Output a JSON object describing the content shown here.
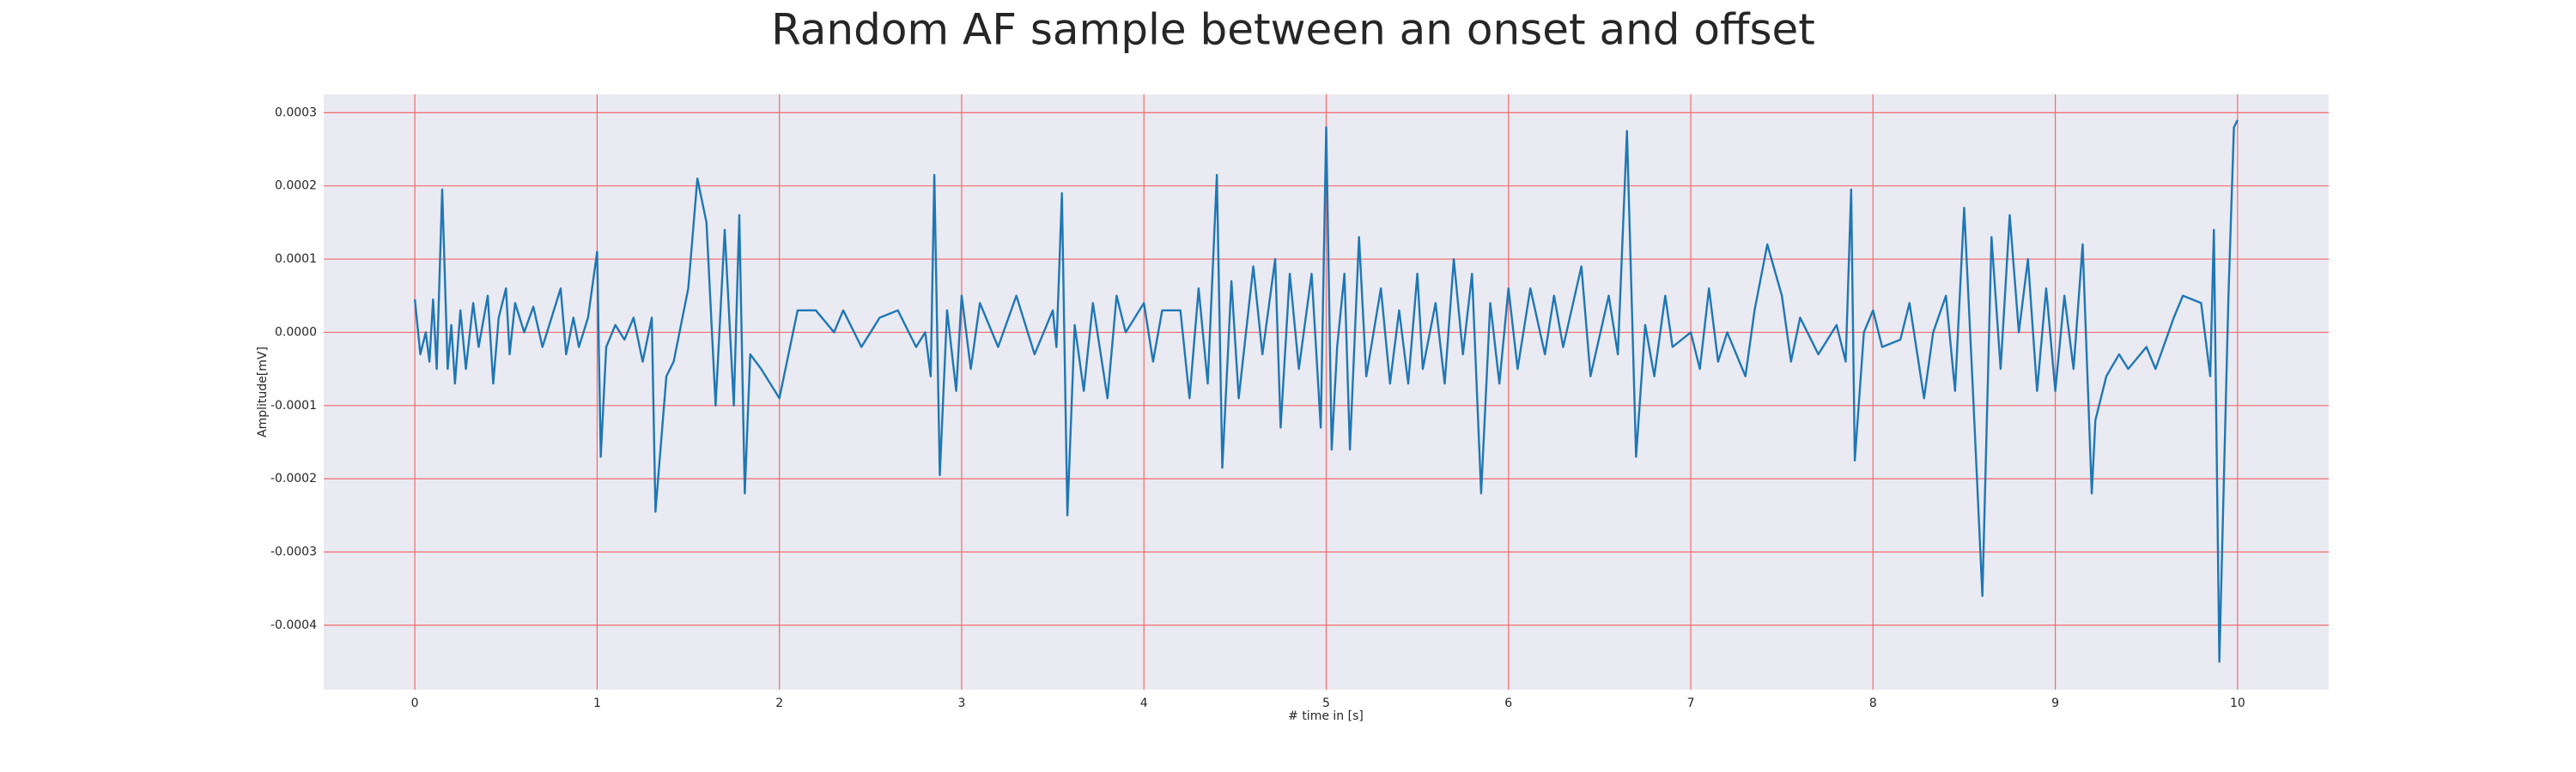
{
  "chart_data": {
    "type": "line",
    "title": "Random AF sample between an onset and offset",
    "xlabel": "# time in [s]",
    "ylabel": "Amplitude[mV]",
    "xlim": [
      -0.5,
      10.5
    ],
    "ylim": [
      -0.000488,
      0.000325
    ],
    "xticks": [
      0,
      1,
      2,
      3,
      4,
      5,
      6,
      7,
      8,
      9,
      10
    ],
    "yticks": [
      -0.0004,
      -0.0003,
      -0.0002,
      -0.0001,
      {
        "value": 0,
        "label": "0.0000"
      },
      0.0001,
      0.0002,
      0.0003
    ],
    "grid": true,
    "grid_color": "#f26b6b",
    "background": "#eaeaf2",
    "series": [
      {
        "color": "#1f77b4",
        "x": [
          0,
          0.03,
          0.06,
          0.08,
          0.1,
          0.12,
          0.15,
          0.18,
          0.2,
          0.22,
          0.25,
          0.28,
          0.32,
          0.35,
          0.4,
          0.43,
          0.46,
          0.5,
          0.52,
          0.55,
          0.6,
          0.65,
          0.7,
          0.75,
          0.8,
          0.83,
          0.87,
          0.9,
          0.95,
          1.0,
          1.02,
          1.05,
          1.1,
          1.15,
          1.2,
          1.25,
          1.3,
          1.32,
          1.38,
          1.42,
          1.5,
          1.55,
          1.6,
          1.65,
          1.7,
          1.75,
          1.78,
          1.81,
          1.84,
          1.9,
          2.0,
          2.05,
          2.1,
          2.2,
          2.3,
          2.35,
          2.45,
          2.55,
          2.65,
          2.75,
          2.8,
          2.83,
          2.85,
          2.88,
          2.92,
          2.97,
          3.0,
          3.05,
          3.1,
          3.2,
          3.3,
          3.4,
          3.5,
          3.52,
          3.55,
          3.58,
          3.62,
          3.67,
          3.72,
          3.8,
          3.85,
          3.9,
          4.0,
          4.05,
          4.1,
          4.2,
          4.25,
          4.3,
          4.35,
          4.4,
          4.43,
          4.48,
          4.52,
          4.6,
          4.65,
          4.72,
          4.75,
          4.8,
          4.85,
          4.92,
          4.97,
          5.0,
          5.03,
          5.06,
          5.1,
          5.13,
          5.18,
          5.22,
          5.3,
          5.35,
          5.4,
          5.45,
          5.5,
          5.53,
          5.6,
          5.65,
          5.7,
          5.75,
          5.8,
          5.85,
          5.9,
          5.95,
          6.0,
          6.05,
          6.12,
          6.2,
          6.25,
          6.3,
          6.4,
          6.45,
          6.55,
          6.6,
          6.65,
          6.7,
          6.75,
          6.8,
          6.86,
          6.9,
          7.0,
          7.05,
          7.1,
          7.15,
          7.2,
          7.3,
          7.35,
          7.42,
          7.5,
          7.55,
          7.6,
          7.7,
          7.8,
          7.85,
          7.88,
          7.9,
          7.95,
          8.0,
          8.05,
          8.15,
          8.2,
          8.28,
          8.33,
          8.4,
          8.45,
          8.5,
          8.55,
          8.6,
          8.65,
          8.7,
          8.75,
          8.8,
          8.85,
          8.9,
          8.95,
          9.0,
          9.05,
          9.1,
          9.15,
          9.2,
          9.22,
          9.28,
          9.35,
          9.4,
          9.5,
          9.55,
          9.65,
          9.7,
          9.8,
          9.85,
          9.87,
          9.9,
          9.95,
          9.98,
          10.0
        ],
        "values": [
          4.5e-05,
          -3e-05,
          0,
          -4e-05,
          4.5e-05,
          -5e-05,
          0.000195,
          -5e-05,
          1e-05,
          -7e-05,
          3e-05,
          -5e-05,
          4e-05,
          -2e-05,
          5e-05,
          -7e-05,
          2e-05,
          6e-05,
          -3e-05,
          4e-05,
          0,
          3.5e-05,
          -2e-05,
          2e-05,
          6e-05,
          -3e-05,
          2e-05,
          -2e-05,
          2e-05,
          0.00011,
          -0.00017,
          -2e-05,
          1e-05,
          -1e-05,
          2e-05,
          -4e-05,
          2e-05,
          -0.000245,
          -6e-05,
          -4e-05,
          6e-05,
          0.00021,
          0.00015,
          -0.0001,
          0.00014,
          -0.0001,
          0.00016,
          -0.00022,
          -3e-05,
          -5e-05,
          -9e-05,
          -3e-05,
          3e-05,
          3e-05,
          0,
          3e-05,
          -2e-05,
          2e-05,
          3e-05,
          -2e-05,
          0,
          -6e-05,
          0.000215,
          -0.000195,
          3e-05,
          -8e-05,
          5e-05,
          -5e-05,
          4e-05,
          -2e-05,
          5e-05,
          -3e-05,
          3e-05,
          -2e-05,
          0.00019,
          -0.00025,
          1e-05,
          -8e-05,
          4e-05,
          -9e-05,
          5e-05,
          0,
          4e-05,
          -4e-05,
          3e-05,
          3e-05,
          -9e-05,
          6e-05,
          -7e-05,
          0.000215,
          -0.000185,
          7e-05,
          -9e-05,
          9e-05,
          -3e-05,
          0.0001,
          -0.00013,
          8e-05,
          -5e-05,
          8e-05,
          -0.00013,
          0.00028,
          -0.00016,
          -2e-05,
          8e-05,
          -0.00016,
          0.00013,
          -6e-05,
          6e-05,
          -7e-05,
          3e-05,
          -7e-05,
          8e-05,
          -5e-05,
          4e-05,
          -7e-05,
          0.0001,
          -3e-05,
          8e-05,
          -0.00022,
          4e-05,
          -7e-05,
          6e-05,
          -5e-05,
          6e-05,
          -3e-05,
          5e-05,
          -2e-05,
          9e-05,
          -6e-05,
          5e-05,
          -3e-05,
          0.000275,
          -0.00017,
          1e-05,
          -6e-05,
          5e-05,
          -2e-05,
          0,
          -5e-05,
          6e-05,
          -4e-05,
          0,
          -6e-05,
          3e-05,
          0.00012,
          5e-05,
          -4e-05,
          2e-05,
          -3e-05,
          1e-05,
          -4e-05,
          0.000195,
          -0.000175,
          0,
          3e-05,
          -2e-05,
          -1e-05,
          4e-05,
          -9e-05,
          0,
          5e-05,
          -8e-05,
          0.00017,
          -9e-05,
          -0.00036,
          0.00013,
          -5e-05,
          0.00016,
          0,
          0.0001,
          -8e-05,
          6e-05,
          -8e-05,
          5e-05,
          -5e-05,
          0.00012,
          -0.00022,
          -0.00012,
          -6e-05,
          -3e-05,
          -5e-05,
          -2e-05,
          -5e-05,
          2e-05,
          5e-05,
          4e-05,
          -6e-05,
          0.00014,
          -0.00045,
          5e-05,
          0.00028,
          0.00029
        ]
      }
    ]
  }
}
